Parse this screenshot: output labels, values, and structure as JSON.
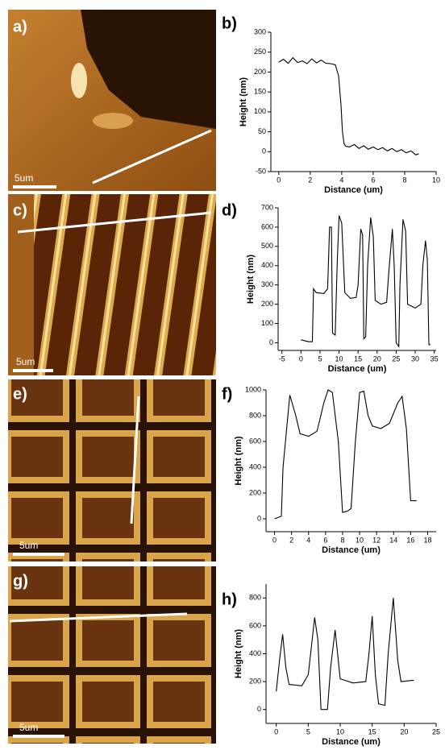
{
  "images": [
    {
      "label": "a)",
      "scale_bar": "5um"
    },
    {
      "label": "c)",
      "scale_bar": "5um"
    },
    {
      "label": "e)",
      "scale_bar": "5um"
    },
    {
      "label": "g)",
      "scale_bar": "5um"
    }
  ],
  "chart_data": [
    {
      "type": "line",
      "label": "b)",
      "x_label": "Distance (um)",
      "y_label": "Height (nm)",
      "color": "#000000",
      "x": [
        0,
        0.3,
        0.6,
        0.9,
        1.2,
        1.5,
        1.8,
        2.1,
        2.4,
        2.7,
        3.0,
        3.3,
        3.6,
        3.8,
        3.95,
        4.05,
        4.15,
        4.25,
        4.5,
        4.8,
        5.1,
        5.4,
        5.7,
        6.0,
        6.3,
        6.6,
        6.9,
        7.2,
        7.5,
        7.8,
        8.1,
        8.4,
        8.7,
        8.9
      ],
      "values": [
        225,
        232,
        222,
        236,
        224,
        228,
        221,
        233,
        223,
        230,
        222,
        221,
        218,
        190,
        120,
        50,
        20,
        14,
        12,
        18,
        8,
        15,
        6,
        12,
        5,
        10,
        2,
        8,
        0,
        5,
        -3,
        2,
        -8,
        -5
      ],
      "xlim": [
        -0.5,
        10
      ],
      "xticks": [
        0,
        2,
        4,
        6,
        8,
        10
      ],
      "ylim": [
        -50,
        300
      ],
      "yticks": [
        -50,
        0,
        50,
        100,
        150,
        200,
        250,
        300
      ]
    },
    {
      "type": "line",
      "label": "d)",
      "x_label": "Distance (um)",
      "y_label": "Height (nm)",
      "color": "#000000",
      "x": [
        0,
        2,
        3,
        3.3,
        4,
        6,
        7,
        7.5,
        8,
        8.3,
        9,
        9.5,
        10,
        10.7,
        11.5,
        13,
        14.5,
        15,
        15.7,
        16.2,
        16.5,
        17,
        17.5,
        18.3,
        19,
        19.5,
        21,
        22.5,
        23,
        24,
        24.5,
        25,
        25.7,
        26,
        26.8,
        27.5,
        28,
        30,
        31.5,
        32,
        32.7,
        33.2,
        33.6,
        34
      ],
      "values": [
        15,
        5,
        5,
        280,
        260,
        255,
        280,
        600,
        600,
        50,
        40,
        400,
        660,
        620,
        260,
        230,
        235,
        300,
        590,
        560,
        20,
        30,
        400,
        650,
        550,
        220,
        200,
        210,
        350,
        590,
        400,
        0,
        -20,
        300,
        640,
        580,
        200,
        180,
        200,
        400,
        530,
        430,
        -10,
        -10
      ],
      "xlim": [
        -6,
        35.5
      ],
      "xticks": [
        -5,
        0,
        5,
        10,
        15,
        20,
        25,
        30,
        35
      ],
      "ylim": [
        -40,
        700
      ],
      "yticks": [
        0,
        100,
        200,
        300,
        400,
        500,
        600,
        700
      ]
    },
    {
      "type": "line",
      "label": "f)",
      "x_label": "Distance (um)",
      "y_label": "Height (nm)",
      "color": "#000000",
      "x": [
        0,
        0.8,
        1,
        1.8,
        2.5,
        3,
        4,
        5,
        5.8,
        6.3,
        6.8,
        7.5,
        8,
        8.6,
        9,
        9.5,
        10,
        10.5,
        11,
        11.5,
        12.5,
        13.5,
        14.5,
        15,
        15.5,
        16,
        16.7
      ],
      "values": [
        0,
        20,
        400,
        960,
        800,
        660,
        640,
        680,
        900,
        1000,
        980,
        600,
        50,
        60,
        80,
        600,
        980,
        990,
        800,
        720,
        700,
        740,
        900,
        950,
        700,
        140,
        140
      ],
      "xlim": [
        -1,
        19
      ],
      "xticks": [
        0,
        2,
        4,
        6,
        8,
        10,
        12,
        14,
        16,
        18
      ],
      "ylim": [
        -100,
        1000
      ],
      "yticks": [
        0,
        200,
        400,
        600,
        800,
        1000
      ]
    },
    {
      "type": "line",
      "label": "h)",
      "x_label": "Distance (um)",
      "y_label": "Height (nm)",
      "color": "#000000",
      "x": [
        0,
        0.5,
        1,
        1.5,
        2,
        4,
        5,
        6,
        6.5,
        7,
        8,
        8.5,
        9.2,
        10,
        12,
        14,
        14.5,
        15,
        15.5,
        16,
        17,
        17.5,
        18.3,
        19,
        19.5,
        21.5
      ],
      "values": [
        130,
        350,
        540,
        300,
        180,
        170,
        250,
        660,
        500,
        0,
        0,
        300,
        570,
        220,
        190,
        200,
        400,
        670,
        250,
        40,
        30,
        400,
        800,
        350,
        200,
        210
      ],
      "xlim": [
        -1.6,
        25
      ],
      "xticks": [
        0,
        5,
        10,
        15,
        20,
        25
      ],
      "ylim": [
        -100,
        900
      ],
      "yticks": [
        0,
        200,
        400,
        600,
        800
      ]
    }
  ]
}
